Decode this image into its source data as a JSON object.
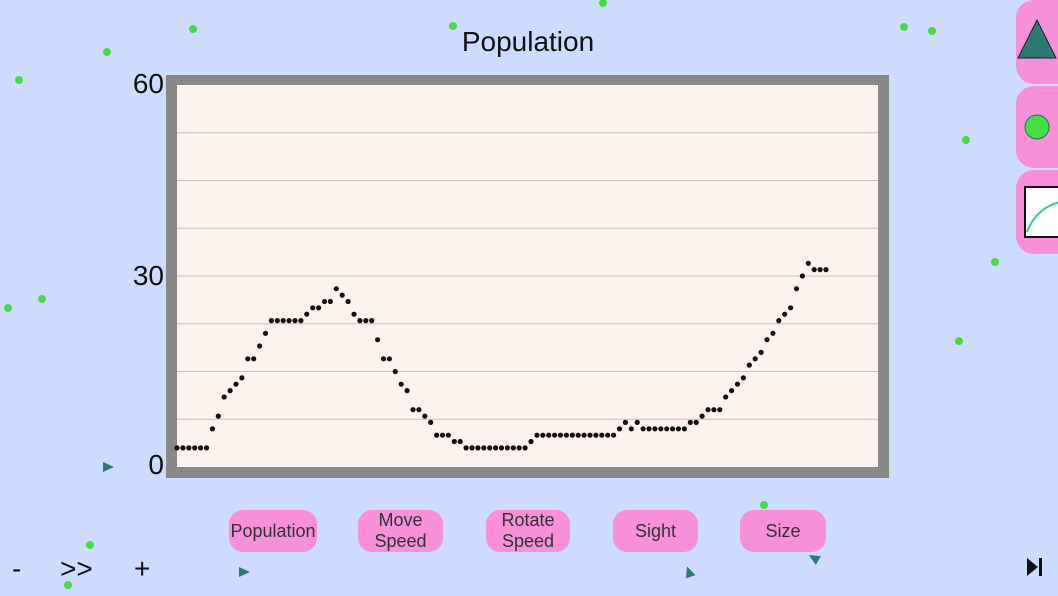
{
  "chart_data": {
    "type": "scatter",
    "title": "Population",
    "xlabel": "",
    "ylabel": "",
    "ylim": [
      0,
      60
    ],
    "yticks": [
      "0",
      "30",
      "60"
    ],
    "grid": true,
    "series": [
      {
        "values": [
          3,
          3,
          3,
          3,
          3,
          3,
          6,
          8,
          11,
          12,
          13,
          14,
          17,
          17,
          19,
          21,
          23,
          23,
          23,
          23,
          23,
          23,
          24,
          25,
          25,
          26,
          26,
          28,
          27,
          26,
          24,
          23,
          23,
          23,
          20,
          17,
          17,
          15,
          13,
          12,
          9,
          9,
          8,
          7,
          5,
          5,
          5,
          4,
          4,
          3,
          3,
          3,
          3,
          3,
          3,
          3,
          3,
          3,
          3,
          3,
          4,
          5,
          5,
          5,
          5,
          5,
          5,
          5,
          5,
          5,
          5,
          5,
          5,
          5,
          5,
          6,
          7,
          6,
          7,
          6,
          6,
          6,
          6,
          6,
          6,
          6,
          6,
          7,
          7,
          8,
          9,
          9,
          9,
          11,
          12,
          13,
          14,
          16,
          17,
          18,
          20,
          21,
          23,
          24,
          25,
          28,
          30,
          32,
          31,
          31,
          31
        ]
      }
    ]
  },
  "buttons": {
    "population": "Population",
    "move_speed": "Move\nSpeed",
    "rotate_speed": "Rotate\nSpeed",
    "sight": "Sight",
    "size": "Size"
  },
  "controls": {
    "minus": "-",
    "fast_forward": ">>",
    "plus": "+",
    "step": "▶|"
  },
  "colors": {
    "background": "#cddcfd",
    "plot_background": "#fdf3ee",
    "plot_border": "#888888",
    "dot": "#111111",
    "food": "#44dd44",
    "creature": "#2e7a6e",
    "button": "#f890d8"
  },
  "sidebar": {
    "icons": [
      "triangle-icon",
      "circle-icon",
      "chart-icon"
    ]
  }
}
